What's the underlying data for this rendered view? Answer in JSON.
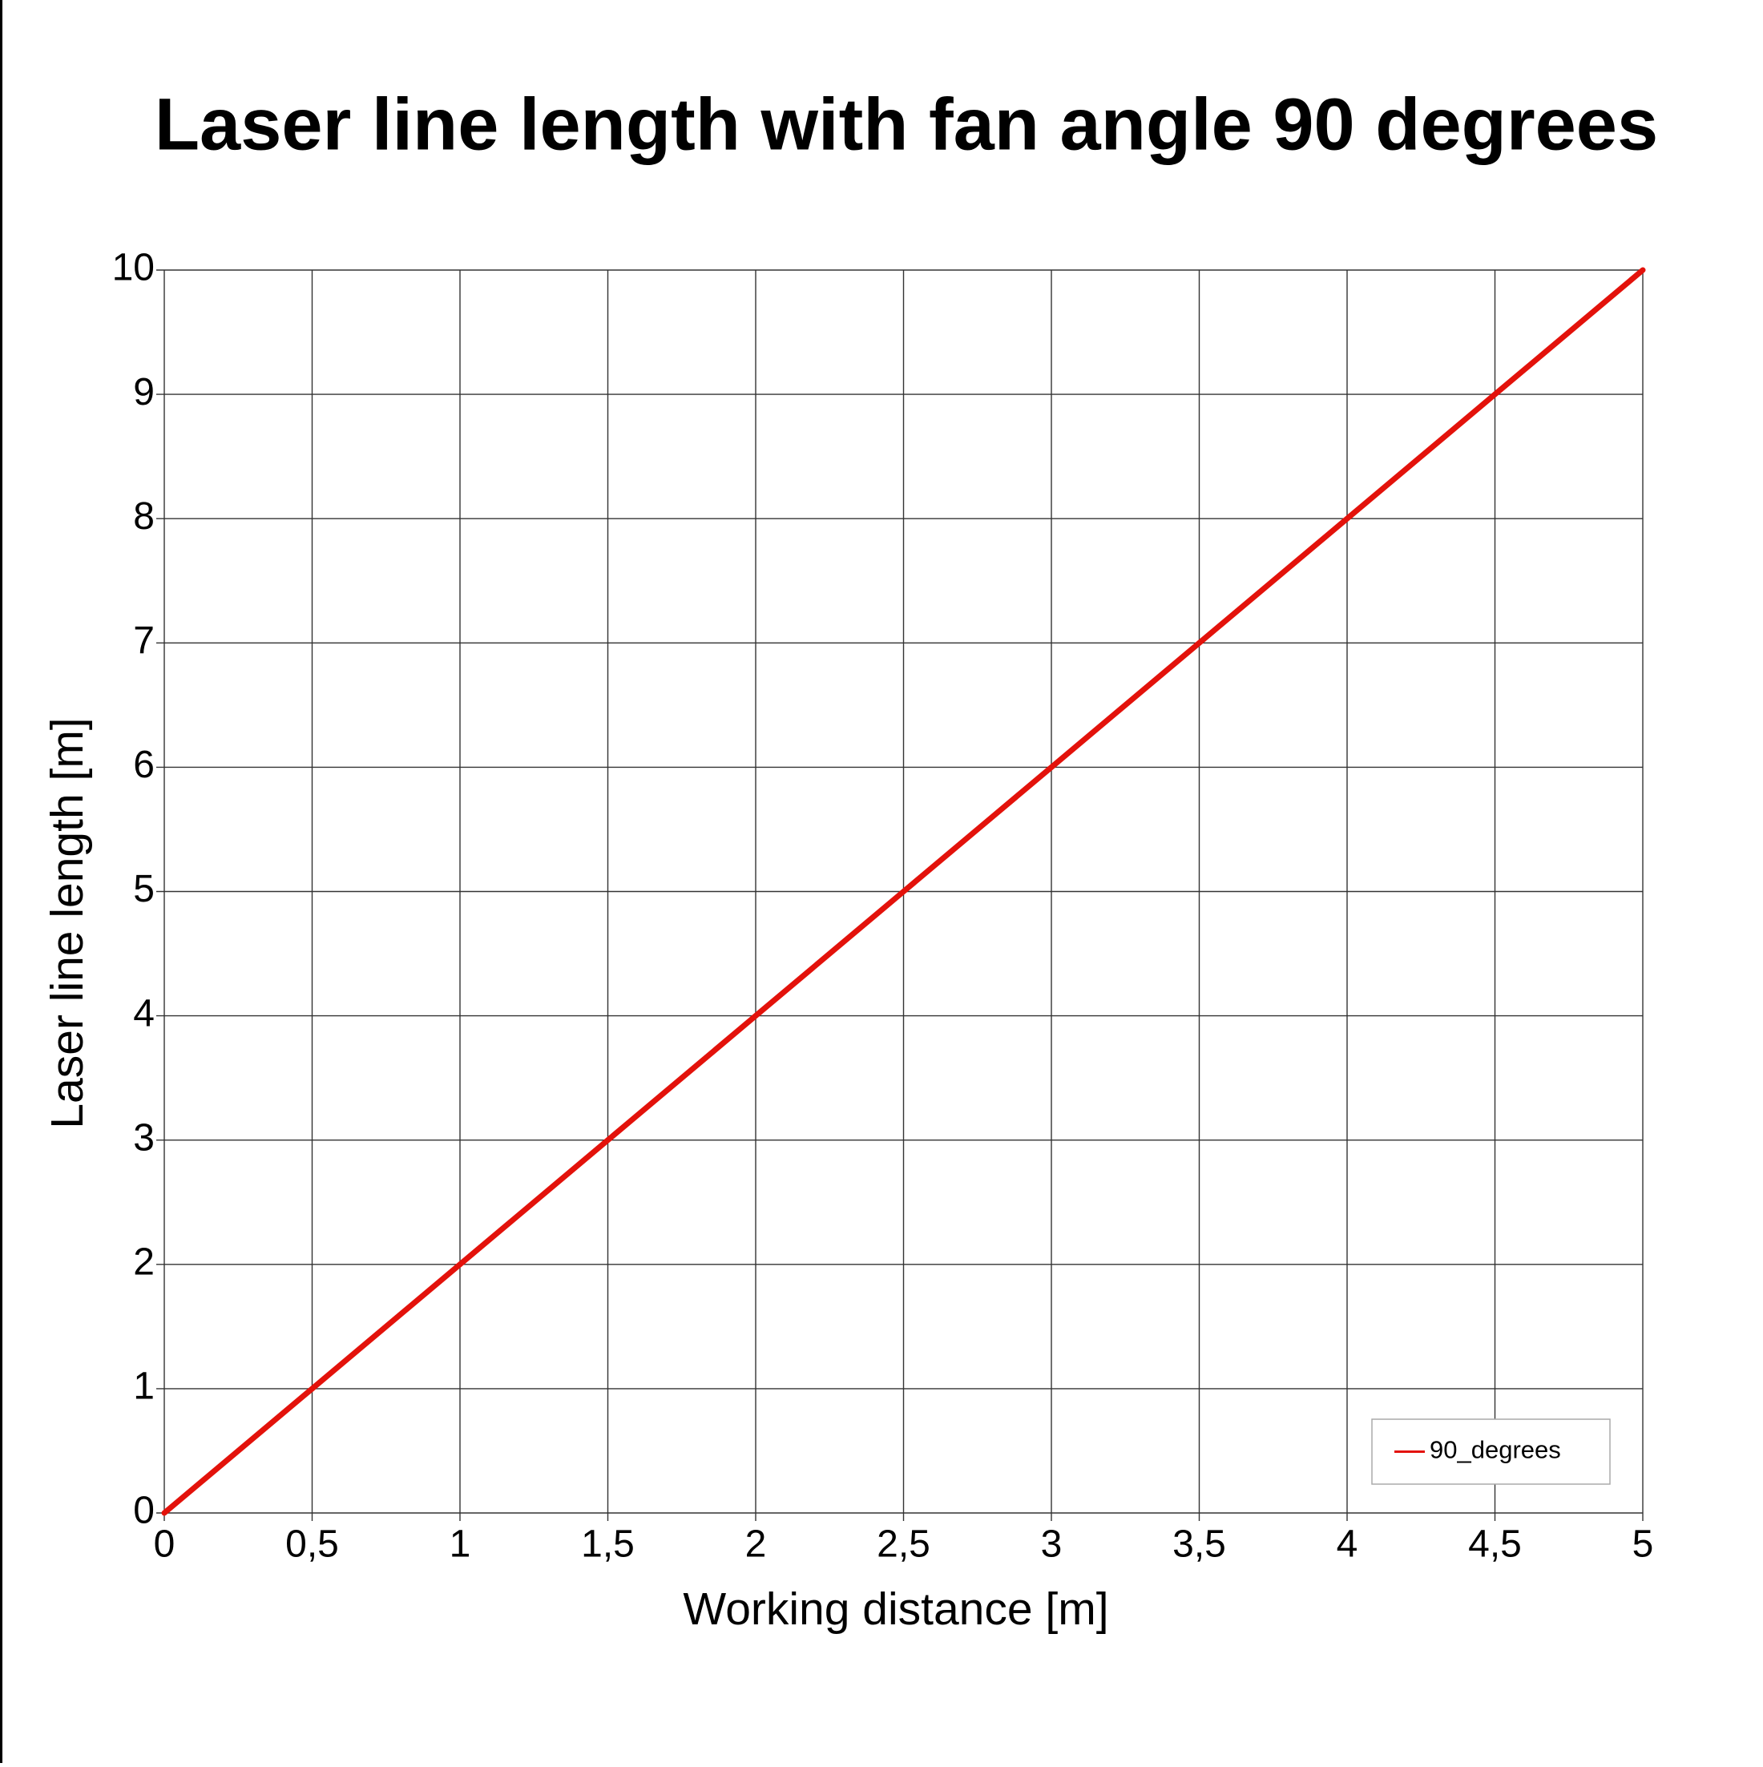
{
  "chart_data": {
    "type": "line",
    "title": "Laser line length with fan angle 90 degrees",
    "x_label": "Working distance [m]",
    "y_label": "Laser line length [m]",
    "x": [
      0,
      0.5,
      1,
      1.5,
      2,
      2.5,
      3,
      3.5,
      4,
      4.5,
      5
    ],
    "series": [
      {
        "name": "90_degrees",
        "color": "#e3120b",
        "values": [
          0,
          1,
          2,
          3,
          4,
          5,
          6,
          7,
          8,
          9,
          10
        ]
      }
    ],
    "xlim": [
      0,
      5
    ],
    "xticks": [
      0,
      {
        "value": 0.5,
        "label": "0,5"
      },
      1,
      {
        "value": 1.5,
        "label": "1,5"
      },
      2,
      {
        "value": 2.5,
        "label": "2,5"
      },
      3,
      {
        "value": 3.5,
        "label": "3,5"
      },
      4,
      {
        "value": 4.5,
        "label": "4,5"
      },
      5
    ],
    "ylim": [
      0,
      10
    ],
    "yticks": [
      0,
      1,
      2,
      3,
      4,
      5,
      6,
      7,
      8,
      9,
      10
    ],
    "grid": true,
    "legend": "bottom-right"
  }
}
